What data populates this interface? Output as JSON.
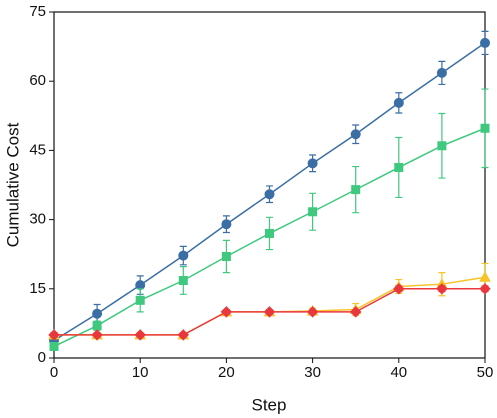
{
  "chart_data": {
    "type": "line",
    "x_label": "Step",
    "y_label": "Cumulative Cost",
    "x": [
      0,
      5,
      10,
      15,
      20,
      25,
      30,
      35,
      40,
      45,
      50
    ],
    "xlim": [
      0,
      50
    ],
    "xticks": [
      0,
      10,
      20,
      30,
      40,
      50
    ],
    "ylim": [
      0,
      75
    ],
    "yticks": [
      0,
      15,
      30,
      45,
      60,
      75
    ],
    "series": [
      {
        "color": "#3a6ea5",
        "marker": "circle",
        "values": [
          3.8,
          9.6,
          15.8,
          22.2,
          29,
          35.5,
          42.2,
          48.5,
          55.3,
          61.8,
          68.3
        ],
        "errors": [
          0.8,
          2,
          2,
          2,
          1.8,
          1.8,
          1.8,
          2,
          2.2,
          2.5,
          2.5
        ]
      },
      {
        "color": "#3ec97e",
        "marker": "square",
        "values": [
          2.5,
          7,
          12.5,
          16.8,
          22,
          27,
          31.7,
          36.5,
          41.3,
          46,
          49.8
        ],
        "errors": [
          0.5,
          1,
          2.5,
          3,
          3.5,
          3.5,
          4,
          5,
          6.5,
          7,
          8.5
        ]
      },
      {
        "color": "#f7c325",
        "marker": "triangle",
        "values": [
          5,
          5,
          5,
          5,
          10,
          10,
          10.2,
          10.5,
          15.5,
          16,
          17.5
        ],
        "errors": [
          0.5,
          0.5,
          0.5,
          0.5,
          0.5,
          0.5,
          0.6,
          1.3,
          1.5,
          2.5,
          3
        ]
      },
      {
        "color": "#e8383d",
        "marker": "diamond",
        "values": [
          5,
          5,
          5,
          5,
          10,
          10,
          10,
          10,
          15,
          15,
          15
        ],
        "errors": [
          0.5,
          0.4,
          0.4,
          0.4,
          0.4,
          0.4,
          0.4,
          0.4,
          0.6,
          0.6,
          0.6
        ]
      }
    ]
  }
}
